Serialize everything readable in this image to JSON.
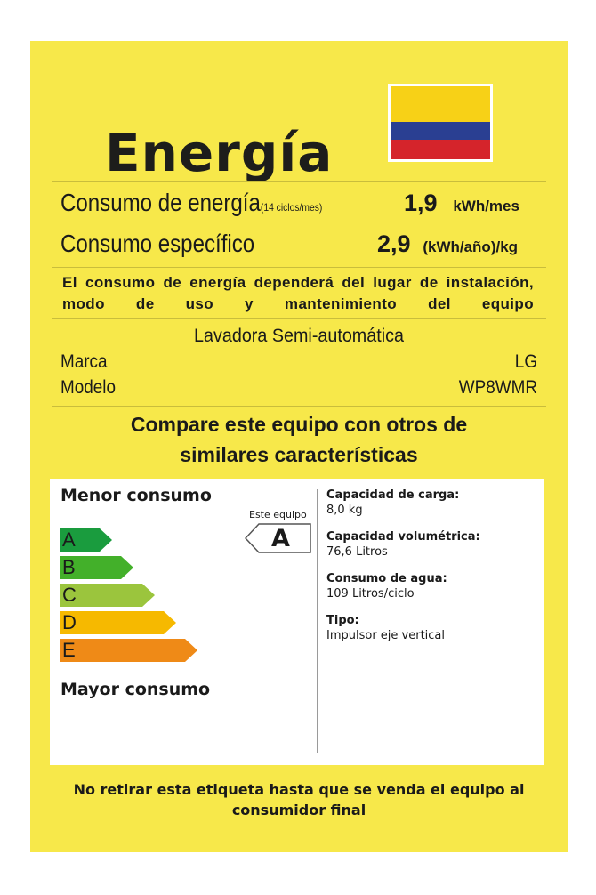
{
  "title": "Energía",
  "consumo": {
    "label": "Consumo de energía",
    "note": "(14 ciclos/mes)",
    "value": "1,9",
    "unit": "kWh/mes"
  },
  "especifico": {
    "label": "Consumo específico",
    "value": "2,9",
    "unit": "(kWh/año)/kg"
  },
  "disclaimer": "El consumo de energía dependerá del lugar de instalación, modo de uso y mantenimiento del equipo",
  "product": {
    "type": "Lavadora Semi-automática",
    "marca_label": "Marca",
    "marca_value": "LG",
    "modelo_label": "Modelo",
    "modelo_value": "WP8WMR"
  },
  "compare": {
    "line1": "Compare este equipo con otros de",
    "line2": "similares características"
  },
  "scale": {
    "top": "Menor consumo",
    "bottom": "Mayor consumo",
    "classes": [
      {
        "letter": "A",
        "color": "#1a9c3e"
      },
      {
        "letter": "B",
        "color": "#43b02a"
      },
      {
        "letter": "C",
        "color": "#9bc53d"
      },
      {
        "letter": "D",
        "color": "#f6b900"
      },
      {
        "letter": "E",
        "color": "#ef8a17"
      }
    ],
    "este_equipo_label": "Este equipo",
    "rating": "A"
  },
  "specs": [
    {
      "key": "Capacidad de carga:",
      "value": "8,0 kg"
    },
    {
      "key": "Capacidad volumétrica:",
      "value": "76,6 Litros"
    },
    {
      "key": "Consumo de agua:",
      "value": "109 Litros/ciclo"
    },
    {
      "key": "Tipo:",
      "value": "Impulsor eje vertical"
    }
  ],
  "footer": {
    "line1": "No retirar esta etiqueta hasta que se venda el equipo al",
    "line2": "consumidor final"
  },
  "colors": {
    "label_background": "#f7e84a",
    "flag_yellow": "#f7d117",
    "flag_blue": "#2a3f92",
    "flag_red": "#d5242b"
  }
}
